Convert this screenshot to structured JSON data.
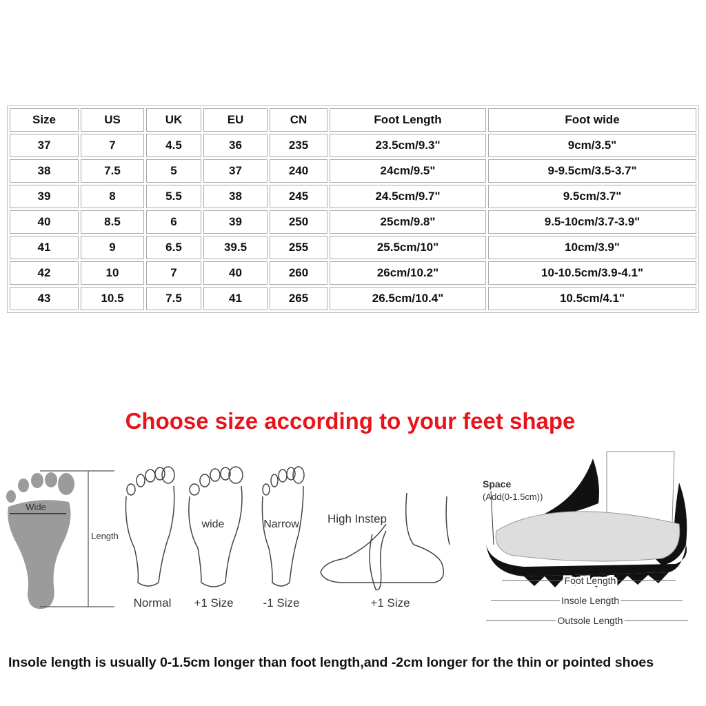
{
  "table": {
    "header": [
      "Size",
      "US",
      "UK",
      "EU",
      "CN",
      "Foot Length",
      "Foot wide"
    ],
    "rows": [
      [
        "37",
        "7",
        "4.5",
        "36",
        "235",
        "23.5cm/9.3\"",
        "9cm/3.5\""
      ],
      [
        "38",
        "7.5",
        "5",
        "37",
        "240",
        "24cm/9.5\"",
        "9-9.5cm/3.5-3.7\""
      ],
      [
        "39",
        "8",
        "5.5",
        "38",
        "245",
        "24.5cm/9.7\"",
        "9.5cm/3.7\""
      ],
      [
        "40",
        "8.5",
        "6",
        "39",
        "250",
        "25cm/9.8\"",
        "9.5-10cm/3.7-3.9\""
      ],
      [
        "41",
        "9",
        "6.5",
        "39.5",
        "255",
        "25.5cm/10\"",
        "10cm/3.9\""
      ],
      [
        "42",
        "10",
        "7",
        "40",
        "260",
        "26cm/10.2\"",
        "10-10.5cm/3.9-4.1\""
      ],
      [
        "43",
        "10.5",
        "7.5",
        "41",
        "265",
        "26.5cm/10.4\"",
        "10.5cm/4.1\""
      ]
    ]
  },
  "heading": "Choose size according to your feet shape",
  "figures": {
    "measure": {
      "width": "Wide",
      "length": "Length"
    },
    "foot_types": [
      {
        "label": "Normal"
      },
      {
        "label": "+1 Size",
        "mark": "wide"
      },
      {
        "label": "-1 Size",
        "mark": "Narrow"
      },
      {
        "label": "+1 Size",
        "mark": "High Instep"
      }
    ],
    "shoe": {
      "space": "Space",
      "space_note": "(Add(0-1.5cm))",
      "lengths": [
        "Foot Length",
        "Insole Length",
        "Outsole Length"
      ]
    }
  },
  "note": "Insole length is usually 0-1.5cm longer than foot length,and -2cm longer for the thin or pointed shoes"
}
